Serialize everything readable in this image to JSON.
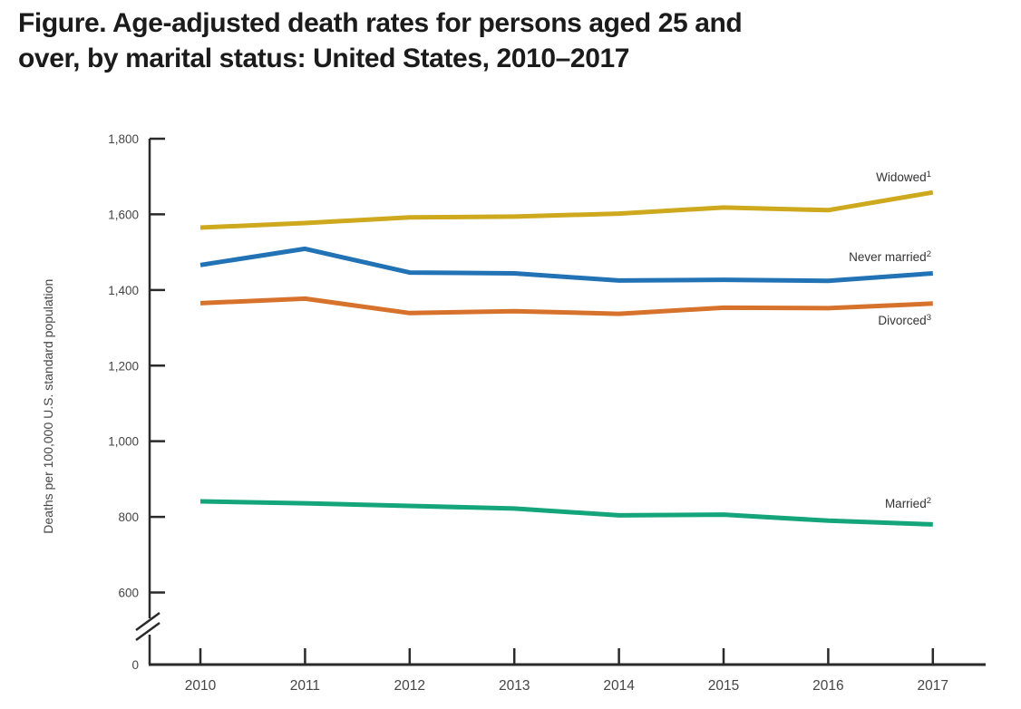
{
  "figure": {
    "title_line1": "Figure. Age-adjusted death rates for persons aged 25 and",
    "title_line2": "over, by marital status: United States, 2010–2017"
  },
  "chart_data": {
    "type": "line",
    "title": "Age-adjusted death rates for persons aged 25 and over, by marital status: United States, 2010–2017",
    "xlabel": "",
    "ylabel": "Deaths per 100,000 U.S. standard population",
    "x_categories": [
      "2010",
      "2011",
      "2012",
      "2013",
      "2014",
      "2015",
      "2016",
      "2017"
    ],
    "ylim": [
      0,
      1800
    ],
    "y_axis_break": true,
    "y_break_between": [
      0,
      600
    ],
    "grid": false,
    "legend_position": "end-of-line-labels",
    "y_ticks": [
      {
        "value": 1800,
        "label": "1,800"
      },
      {
        "value": 1600,
        "label": "1,600"
      },
      {
        "value": 1400,
        "label": "1,400"
      },
      {
        "value": 1200,
        "label": "1,200"
      },
      {
        "value": 1000,
        "label": "1,000"
      },
      {
        "value": 800,
        "label": "800"
      },
      {
        "value": 600,
        "label": "600"
      }
    ],
    "y_zero_label": "0",
    "series": [
      {
        "name": "Widowed",
        "footnote_sup": "1",
        "color": "#CEA91D",
        "values": [
          1565,
          1577,
          1592,
          1594,
          1602,
          1618,
          1611,
          1658
        ]
      },
      {
        "name": "Never married",
        "footnote_sup": "2",
        "color": "#2173B6",
        "values": [
          1466,
          1509,
          1446,
          1444,
          1425,
          1427,
          1424,
          1444
        ]
      },
      {
        "name": "Divorced",
        "footnote_sup": "3",
        "color": "#D7722C",
        "values": [
          1365,
          1377,
          1339,
          1344,
          1337,
          1353,
          1352,
          1364
        ]
      },
      {
        "name": "Married",
        "footnote_sup": "2",
        "color": "#14A67A",
        "values": [
          841,
          836,
          829,
          822,
          804,
          806,
          790,
          780
        ]
      }
    ],
    "colors": {
      "axis": "#2a2a2a",
      "tick_label": "#454545",
      "series_label": "#333333",
      "title_text": "#1b1b1b"
    }
  }
}
